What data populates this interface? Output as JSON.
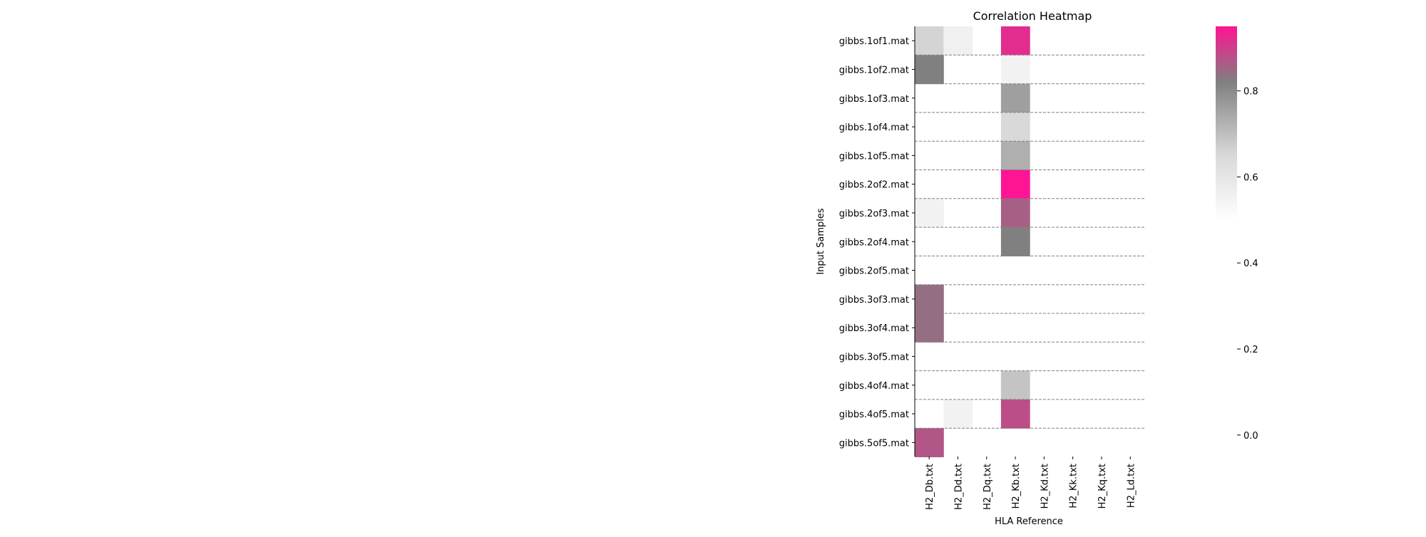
{
  "chart_data": {
    "type": "heatmap",
    "title": "Correlation Heatmap",
    "xlabel": "HLA Reference",
    "ylabel": "Input Samples",
    "columns": [
      "H2_Db.txt",
      "H2_Dd.txt",
      "H2_Dq.txt",
      "H2_Kb.txt",
      "H2_Kd.txt",
      "H2_Kk.txt",
      "H2_Kq.txt",
      "H2_Ld.txt"
    ],
    "rows": [
      "gibbs.1of1.mat",
      "gibbs.1of2.mat",
      "gibbs.1of3.mat",
      "gibbs.1of4.mat",
      "gibbs.1of5.mat",
      "gibbs.2of2.mat",
      "gibbs.2of3.mat",
      "gibbs.2of4.mat",
      "gibbs.2of5.mat",
      "gibbs.3of3.mat",
      "gibbs.3of4.mat",
      "gibbs.3of5.mat",
      "gibbs.4of4.mat",
      "gibbs.4of5.mat",
      "gibbs.5of5.mat"
    ],
    "values": [
      [
        0.66,
        0.56,
        null,
        0.92,
        null,
        null,
        null,
        null
      ],
      [
        0.82,
        null,
        null,
        0.55,
        null,
        null,
        null,
        null
      ],
      [
        null,
        null,
        null,
        0.76,
        null,
        null,
        null,
        null
      ],
      [
        null,
        null,
        null,
        0.65,
        null,
        null,
        null,
        null
      ],
      [
        null,
        null,
        null,
        0.73,
        null,
        null,
        null,
        null
      ],
      [
        null,
        null,
        null,
        0.95,
        null,
        null,
        null,
        null
      ],
      [
        0.55,
        null,
        null,
        0.86,
        null,
        null,
        null,
        null
      ],
      [
        null,
        null,
        null,
        0.82,
        null,
        null,
        null,
        null
      ],
      [
        null,
        null,
        null,
        null,
        null,
        null,
        null,
        null
      ],
      [
        0.84,
        null,
        null,
        null,
        null,
        null,
        null,
        null
      ],
      [
        0.84,
        null,
        null,
        null,
        null,
        null,
        null,
        null
      ],
      [
        null,
        null,
        null,
        null,
        null,
        null,
        null,
        null
      ],
      [
        null,
        null,
        null,
        0.69,
        null,
        null,
        null,
        null
      ],
      [
        null,
        0.55,
        null,
        0.88,
        null,
        null,
        null,
        null
      ],
      [
        0.87,
        null,
        null,
        null,
        null,
        null,
        null,
        null
      ]
    ],
    "colorbar": {
      "range": [
        -0.05,
        0.95
      ],
      "visible_range": [
        0.5,
        0.95
      ],
      "ticks": [
        "0.0",
        "0.2",
        "0.4",
        "0.6",
        "0.8"
      ],
      "tick_values": [
        0.0,
        0.2,
        0.4,
        0.6,
        0.8
      ],
      "colors": [
        "#ffffff",
        "#d9d9d9",
        "#808080",
        "#ff1493"
      ],
      "color_stops": [
        0.5,
        0.65,
        0.82,
        0.95
      ]
    },
    "row_separators": "dashed",
    "grid": false
  }
}
